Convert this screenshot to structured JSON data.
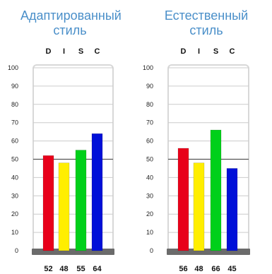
{
  "chart_data": [
    {
      "type": "bar",
      "title": [
        "Адаптированный",
        "стиль"
      ],
      "categories": [
        "D",
        "I",
        "S",
        "C"
      ],
      "values": [
        52,
        48,
        55,
        64
      ],
      "value_labels": [
        "52",
        "48",
        "55",
        "64"
      ],
      "ylim": [
        0,
        100
      ],
      "yticks": [
        "0",
        "10",
        "20",
        "30",
        "40",
        "50",
        "60",
        "70",
        "80",
        "90",
        "100"
      ],
      "midline_value": 50,
      "colors": [
        "#e8001a",
        "#ffee00",
        "#00d01a",
        "#0010d8"
      ]
    },
    {
      "type": "bar",
      "title": [
        "Естественный",
        "стиль"
      ],
      "categories": [
        "D",
        "I",
        "S",
        "C"
      ],
      "values": [
        56,
        48,
        66,
        45
      ],
      "value_labels": [
        "56",
        "48",
        "66",
        "45"
      ],
      "ylim": [
        0,
        100
      ],
      "yticks": [
        "0",
        "10",
        "20",
        "30",
        "40",
        "50",
        "60",
        "70",
        "80",
        "90",
        "100"
      ],
      "midline_value": 50,
      "colors": [
        "#e8001a",
        "#ffee00",
        "#00d01a",
        "#0010d8"
      ]
    }
  ],
  "theme": {
    "title_color": "#4a8fc9",
    "grid_color": "#cccccc",
    "midline_color": "#555555",
    "base_color": "#6b6b6b",
    "frame_color": "#d8d8d8"
  }
}
